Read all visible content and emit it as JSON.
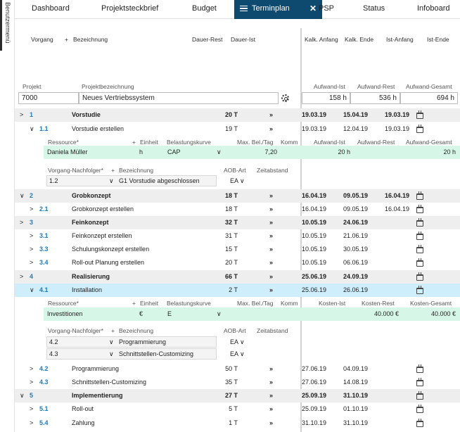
{
  "side_menu": {
    "label": "Benutzermenü"
  },
  "tabs": [
    "Dashboard",
    "Projektsteckbrief",
    "Budget",
    "Terminplan",
    "PSP",
    "Status",
    "Infoboard"
  ],
  "active_tab_close": "✕",
  "columns": {
    "vorgang": "Vorgang",
    "plus": "+",
    "bezeichnung": "Bezeichnung",
    "dauer_rest": "Dauer-Rest",
    "dauer_ist": "Dauer-Ist",
    "kalk_anfang": "Kalk. Anfang",
    "kalk_ende": "Kalk. Ende",
    "ist_anfang": "Ist-Anfang",
    "ist_ende": "Ist-Ende"
  },
  "project": {
    "label_projekt": "Projekt",
    "label_bez": "Projektbezeichnung",
    "id": "7000",
    "name": "Neues Vertriebssystem",
    "label_aufwand_ist": "Aufwand-Ist",
    "label_aufwand_rest": "Aufwand-Rest",
    "label_aufwand_gesamt": "Aufwand-Gesamt",
    "aufwand_ist": "158 h",
    "aufwand_rest": "536 h",
    "aufwand_gesamt": "694 h"
  },
  "rows": [
    {
      "ex": ">",
      "id": "1",
      "name": "Vorstudie",
      "dauer": "20 T",
      "arrow": "»",
      "ka": "19.03.19",
      "ke": "15.04.19",
      "ia": "19.03.19"
    },
    {
      "ex": "∨",
      "id": "1.1",
      "name": "Vorstudie erstellen",
      "dauer": "19 T",
      "arrow": "»",
      "ka": "19.03.19",
      "ke": "12.04.19",
      "ia": "19.03.19"
    },
    {
      "ex": "∨",
      "id": "2",
      "name": "Grobkonzept",
      "dauer": "18 T",
      "arrow": "»",
      "ka": "16.04.19",
      "ke": "09.05.19",
      "ia": "16.04.19"
    },
    {
      "ex": ">",
      "id": "2.1",
      "name": "Grobkonzept erstellen",
      "dauer": "18 T",
      "arrow": "»",
      "ka": "16.04.19",
      "ke": "09.05.19",
      "ia": "16.04.19"
    },
    {
      "ex": ">",
      "id": "3",
      "name": "Feinkonzept",
      "dauer": "32 T",
      "arrow": "»",
      "ka": "10.05.19",
      "ke": "24.06.19"
    },
    {
      "ex": ">",
      "id": "3.1",
      "name": "Feinkonzept erstellen",
      "dauer": "31 T",
      "arrow": "»",
      "ka": "10.05.19",
      "ke": "21.06.19"
    },
    {
      "ex": ">",
      "id": "3.3",
      "name": "Schulungskonzept erstellen",
      "dauer": "15 T",
      "arrow": "»",
      "ka": "10.05.19",
      "ke": "30.05.19"
    },
    {
      "ex": ">",
      "id": "3.4",
      "name": "Roll-out Planung erstellen",
      "dauer": "20 T",
      "arrow": "»",
      "ka": "10.05.19",
      "ke": "06.06.19"
    },
    {
      "ex": ">",
      "id": "4",
      "name": "Realisierung",
      "dauer": "66 T",
      "arrow": "»",
      "ka": "25.06.19",
      "ke": "24.09.19"
    },
    {
      "ex": "∨",
      "id": "4.1",
      "name": "Installation",
      "dauer": "2 T",
      "arrow": "»",
      "ka": "25.06.19",
      "ke": "26.06.19"
    },
    {
      "ex": ">",
      "id": "4.2",
      "name": "Programmierung",
      "dauer": "50 T",
      "arrow": "»",
      "ka": "27.06.19",
      "ke": "04.09.19"
    },
    {
      "ex": ">",
      "id": "4.3",
      "name": "Schnittstellen-Customizing",
      "dauer": "35 T",
      "arrow": "»",
      "ka": "27.06.19",
      "ke": "14.08.19"
    },
    {
      "ex": "∨",
      "id": "5",
      "name": "Implementierung",
      "dauer": "27 T",
      "arrow": "»",
      "ka": "25.09.19",
      "ke": "31.10.19"
    },
    {
      "ex": ">",
      "id": "5.1",
      "name": "Roll-out",
      "dauer": "5 T",
      "arrow": "»",
      "ka": "25.09.19",
      "ke": "01.10.19"
    },
    {
      "ex": ">",
      "id": "5.4",
      "name": "Zahlung",
      "dauer": "1 T",
      "arrow": "»",
      "ka": "31.10.19",
      "ke": "31.10.19"
    }
  ],
  "res1": {
    "h_ressource": "Ressource*",
    "h_plus": "+",
    "h_einheit": "Einheit",
    "h_kurve": "Belastungskurve",
    "h_max": "Max. Bel./Tag",
    "h_komm": "Komm",
    "h_a": "Aufwand-Ist",
    "h_b": "Aufwand-Rest",
    "h_c": "Aufwand-Gesamt",
    "name": "Daniela Müller",
    "einheit": "h",
    "kurve": "CAP",
    "max": "7,20",
    "a": "20 h",
    "c": "20 h"
  },
  "succ1": {
    "h_vorg": "Vorgang-Nachfolger*",
    "h_plus": "+",
    "h_bez": "Bezeichnung",
    "h_aob": "AOB-Art",
    "h_zeit": "Zeitabstand",
    "items": [
      {
        "id": "1.2",
        "name": "G1 Vorstudie abgeschlossen",
        "aob": "EA"
      }
    ]
  },
  "res2": {
    "h_ressource": "Ressource*",
    "h_plus": "+",
    "h_einheit": "Einheit",
    "h_kurve": "Belastungskurve",
    "h_max": "Max. Bel./Tag",
    "h_komm": "Komm",
    "h_a": "Kosten-Ist",
    "h_b": "Kosten-Rest",
    "h_c": "Kosten-Gesamt",
    "name": "Investitionen",
    "einheit": "€",
    "kurve": "E",
    "b": "40.000 €",
    "c": "40.000 €"
  },
  "succ2": {
    "h_vorg": "Vorgang-Nachfolger*",
    "h_plus": "+",
    "h_bez": "Bezeichnung",
    "h_aob": "AOB-Art",
    "h_zeit": "Zeitabstand",
    "items": [
      {
        "id": "4.2",
        "name": "Programmierung",
        "aob": "EA"
      },
      {
        "id": "4.3",
        "name": "Schnittstellen-Customizing",
        "aob": "EA"
      }
    ]
  },
  "icons": {
    "dropdown": "∨",
    "calendar": "calendar-icon",
    "gear": "gear-icon"
  },
  "colors": {
    "tab_active": "#0e4a6f",
    "id_blue": "#1b7bbd",
    "row_highlight": "#cdeefa",
    "row_resource": "#d6f7e7",
    "row_group": "#eeeeee"
  }
}
